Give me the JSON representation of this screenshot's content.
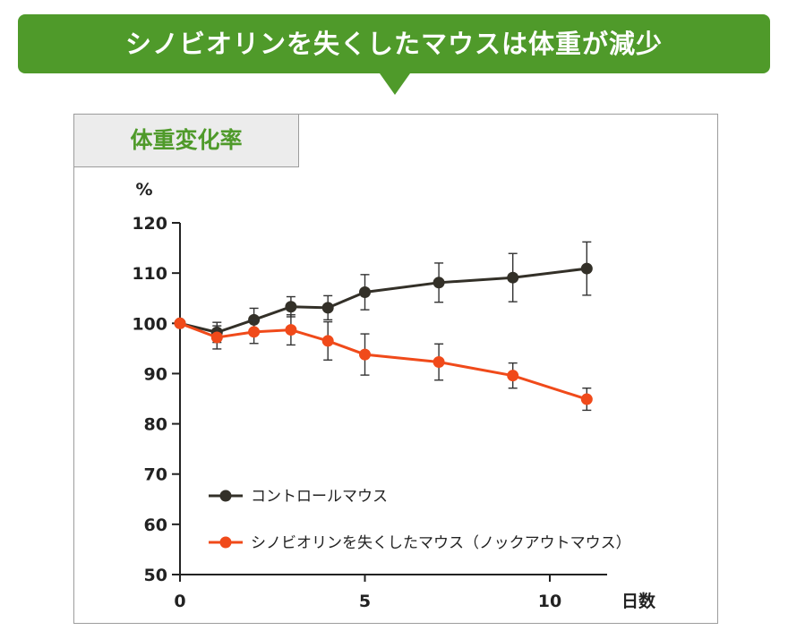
{
  "banner": {
    "title": "シノビオリンを失くしたマウスは体重が減少",
    "color": "#4f9a2a"
  },
  "panel": {
    "tab_label": "体重変化率"
  },
  "chart_data": {
    "type": "line",
    "title": "体重変化率",
    "ylabel": "%",
    "xlabel": "日数",
    "ylim": [
      50,
      120
    ],
    "xlim": [
      0,
      11
    ],
    "yticks": [
      50,
      60,
      70,
      80,
      90,
      100,
      110,
      120
    ],
    "xticks": [
      0,
      5,
      10
    ],
    "grid": false,
    "legend_position": "bottom-left",
    "series": [
      {
        "name": "コントロールマウス",
        "color": "#333028",
        "x": [
          0,
          1,
          2,
          3,
          4,
          5,
          7,
          9,
          11
        ],
        "y": [
          100,
          98.2,
          100.7,
          103.3,
          103.1,
          106.2,
          108.1,
          109.1,
          110.9
        ],
        "error": [
          0,
          2.0,
          2.3,
          2.0,
          2.4,
          3.5,
          3.9,
          4.8,
          5.3
        ]
      },
      {
        "name": "シノビオリンを失くしたマウス（ノックアウトマウス）",
        "color": "#f04a1a",
        "x": [
          0,
          1,
          2,
          3,
          4,
          5,
          7,
          9,
          11
        ],
        "y": [
          100,
          97.2,
          98.3,
          98.7,
          96.5,
          93.8,
          92.3,
          89.6,
          84.9
        ],
        "error": [
          0,
          2.3,
          2.3,
          3.0,
          3.8,
          4.1,
          3.6,
          2.5,
          2.2
        ]
      }
    ]
  }
}
